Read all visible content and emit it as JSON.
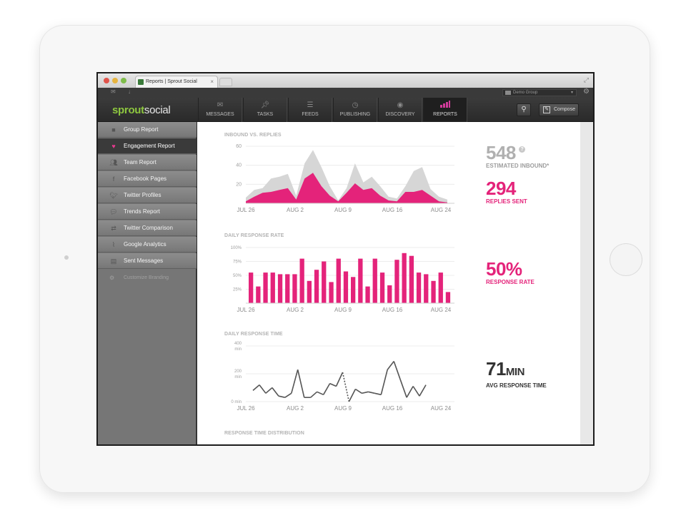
{
  "browser": {
    "tab_title": "Reports | Sprout Social",
    "tab_close": "×"
  },
  "utility": {
    "group_select": "Demo Group"
  },
  "logo": {
    "part1": "sprout",
    "part2": "social"
  },
  "nav": {
    "items": [
      {
        "label": "MESSAGES",
        "icon": "envelope-icon"
      },
      {
        "label": "TASKS",
        "icon": "pin-icon"
      },
      {
        "label": "FEEDS",
        "icon": "list-icon"
      },
      {
        "label": "PUBLISHING",
        "icon": "clock-icon"
      },
      {
        "label": "DISCOVERY",
        "icon": "binoculars-icon"
      },
      {
        "label": "REPORTS",
        "icon": "bar-chart-icon"
      }
    ],
    "active": "REPORTS",
    "compose_label": "Compose"
  },
  "sidebar": {
    "items": [
      {
        "label": "Group Report",
        "icon": "folder-icon"
      },
      {
        "label": "Engagement Report",
        "icon": "heart-icon"
      },
      {
        "label": "Team Report",
        "icon": "team-icon"
      },
      {
        "label": "Facebook Pages",
        "icon": "facebook-icon"
      },
      {
        "label": "Twitter Profiles",
        "icon": "twitter-icon"
      },
      {
        "label": "Trends Report",
        "icon": "speech-icon"
      },
      {
        "label": "Twitter Comparison",
        "icon": "compare-icon"
      },
      {
        "label": "Google Analytics",
        "icon": "analytics-icon"
      },
      {
        "label": "Sent Messages",
        "icon": "sent-icon"
      }
    ],
    "active": "Engagement Report",
    "customize_label": "Customize Branding"
  },
  "colors": {
    "accent": "#e4237a",
    "brand_green": "#8dc63f",
    "gray_area": "#d6d6d6"
  },
  "sections": {
    "inbound": {
      "title": "INBOUND VS. REPLIES",
      "stat1_value": "548",
      "stat1_label": "ESTIMATED INBOUND*",
      "stat1_info": "?",
      "stat2_value": "294",
      "stat2_label": "REPLIES SENT"
    },
    "rate": {
      "title": "DAILY RESPONSE RATE",
      "stat_value": "50%",
      "stat_label": "RESPONSE RATE"
    },
    "time": {
      "title": "DAILY RESPONSE TIME",
      "stat_value": "71",
      "stat_unit": "MIN",
      "stat_label": "AVG RESPONSE TIME"
    },
    "distribution": {
      "title": "RESPONSE TIME DISTRIBUTION"
    }
  },
  "chart_data": [
    {
      "type": "area",
      "title": "INBOUND VS. REPLIES",
      "x_ticks": [
        "JUL 26",
        "AUG 2",
        "AUG 9",
        "AUG 16",
        "AUG 24"
      ],
      "y_ticks": [
        "60",
        "40",
        "20"
      ],
      "ylim": [
        0,
        60
      ],
      "series": [
        {
          "values": [
            6,
            14,
            16,
            26,
            28,
            31,
            8,
            42,
            56,
            38,
            18,
            3,
            16,
            42,
            22,
            28,
            18,
            7,
            5,
            18,
            34,
            38,
            15,
            7,
            4
          ]
        },
        {
          "values": [
            2,
            7,
            11,
            12,
            14,
            16,
            4,
            26,
            32,
            18,
            8,
            2,
            11,
            21,
            14,
            16,
            8,
            3,
            2,
            12,
            12,
            14,
            8,
            2,
            1
          ]
        }
      ]
    },
    {
      "type": "bar",
      "title": "DAILY RESPONSE RATE",
      "x_ticks": [
        "JUL 26",
        "AUG 2",
        "AUG 9",
        "AUG 16",
        "AUG 24"
      ],
      "y_ticks": [
        "100%",
        "75%",
        "50%",
        "25%"
      ],
      "ylim": [
        0,
        100
      ],
      "values": [
        55,
        30,
        55,
        55,
        52,
        52,
        52,
        80,
        40,
        60,
        75,
        38,
        80,
        57,
        47,
        80,
        30,
        80,
        55,
        32,
        78,
        90,
        85,
        55,
        52,
        40,
        55,
        20
      ]
    },
    {
      "type": "line",
      "title": "DAILY RESPONSE TIME",
      "x_ticks": [
        "JUL 26",
        "AUG 2",
        "AUG 9",
        "AUG 16",
        "AUG 24"
      ],
      "y_ticks": [
        "400 min",
        "200 min",
        "0 min"
      ],
      "ylim": [
        0,
        400
      ],
      "values": [
        80,
        120,
        60,
        100,
        40,
        30,
        60,
        230,
        30,
        30,
        70,
        50,
        130,
        110,
        210,
        0,
        90,
        60,
        70,
        60,
        50,
        230,
        290,
        160,
        30,
        110,
        40,
        120
      ],
      "dashed_segment_index": 14
    }
  ]
}
